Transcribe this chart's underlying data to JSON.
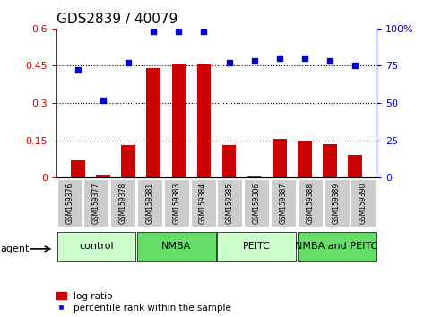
{
  "title": "GDS2839 / 40079",
  "samples": [
    "GSM159376",
    "GSM159377",
    "GSM159378",
    "GSM159381",
    "GSM159383",
    "GSM159384",
    "GSM159385",
    "GSM159386",
    "GSM159387",
    "GSM159388",
    "GSM159389",
    "GSM159390"
  ],
  "log_ratio_vals": [
    0.07,
    0.01,
    0.13,
    0.44,
    0.46,
    0.46,
    0.13,
    0.005,
    0.155,
    0.15,
    0.135,
    0.09
  ],
  "percentile_vals": [
    72,
    52,
    77,
    98,
    98,
    98,
    77,
    78,
    80,
    80,
    78,
    75
  ],
  "bar_color": "#cc0000",
  "dot_color": "#0000cc",
  "ylim_left": [
    0,
    0.6
  ],
  "ylim_right": [
    0,
    100
  ],
  "yticks_left": [
    0,
    0.15,
    0.3,
    0.45,
    0.6
  ],
  "ytick_labels_left": [
    "0",
    "0.15",
    "0.3",
    "0.45",
    "0.6"
  ],
  "yticks_right": [
    0,
    25,
    50,
    75,
    100
  ],
  "ytick_labels_right": [
    "0",
    "25",
    "50",
    "75",
    "100%"
  ],
  "hlines": [
    0.15,
    0.3,
    0.45
  ],
  "groups": [
    {
      "label": "control",
      "start": 0,
      "end": 3,
      "color": "#ccffcc"
    },
    {
      "label": "NMBA",
      "start": 3,
      "end": 6,
      "color": "#66dd66"
    },
    {
      "label": "PEITC",
      "start": 6,
      "end": 9,
      "color": "#ccffcc"
    },
    {
      "label": "NMBA and PEITC",
      "start": 9,
      "end": 12,
      "color": "#66dd66"
    }
  ],
  "sample_box_color": "#cccccc",
  "legend_bar_label": "log ratio",
  "legend_dot_label": "percentile rank within the sample",
  "agent_label": "agent",
  "title_fontsize": 11,
  "tick_fontsize": 8,
  "group_fontsize": 8,
  "sample_fontsize": 5.5,
  "legend_fontsize": 7.5
}
